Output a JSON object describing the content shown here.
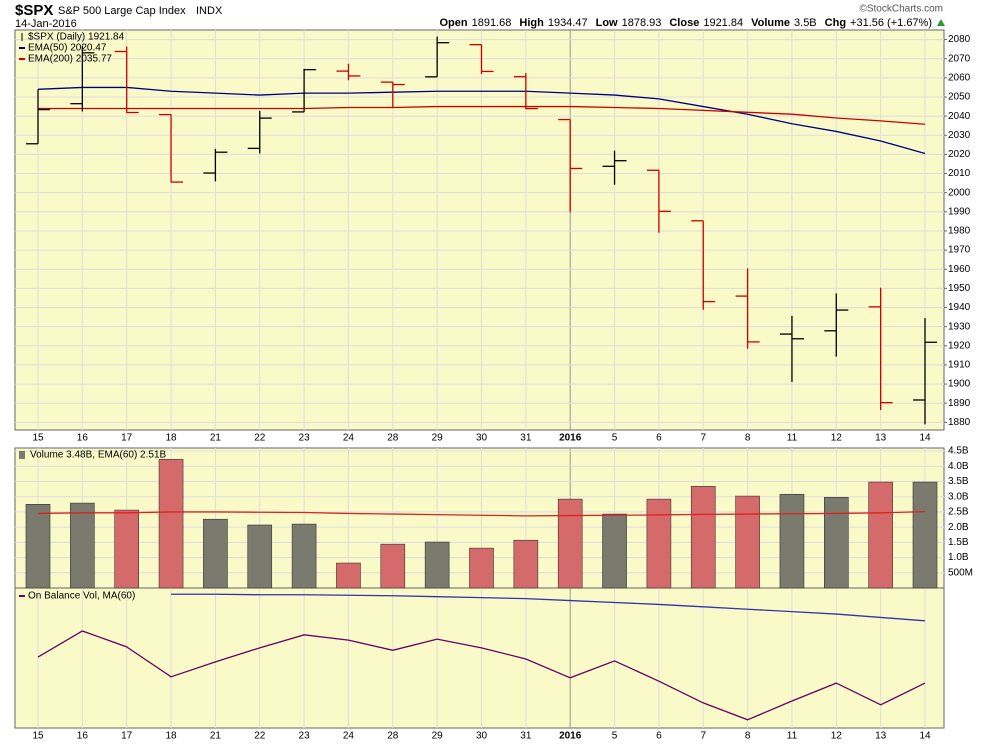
{
  "header": {
    "symbol": "$SPX",
    "name": "S&P 500 Large Cap Index",
    "exchange": "INDX",
    "date": "14-Jan-2016",
    "copyright": "©StockCharts.com",
    "quote": [
      {
        "label": "Open",
        "value": "1891.68"
      },
      {
        "label": "High",
        "value": "1934.47"
      },
      {
        "label": "Low",
        "value": "1878.93"
      },
      {
        "label": "Close",
        "value": "1921.84"
      },
      {
        "label": "Volume",
        "value": "3.5B"
      },
      {
        "label": "Chg",
        "value": "+31.56 (+1.67%)"
      }
    ]
  },
  "chart_data": [
    {
      "type": "ohlc",
      "name": "$SPX (Daily) 1921.84",
      "categories": [
        "15",
        "16",
        "17",
        "18",
        "21",
        "22",
        "23",
        "24",
        "28",
        "29",
        "30",
        "31",
        "2016",
        "5",
        "6",
        "7",
        "8",
        "11",
        "12",
        "13",
        "14"
      ],
      "open": [
        2025.55,
        2046.5,
        2073.76,
        2040.81,
        2010.27,
        2023.15,
        2042.2,
        2063.52,
        2057.77,
        2060.54,
        2077.34,
        2060.59,
        2038.2,
        2013.78,
        2011.71,
        1985.32,
        1945.97,
        1926.12,
        1927.83,
        1940.34,
        1891.68
      ],
      "high": [
        2053.87,
        2076.72,
        2076.37,
        2040.81,
        2022.9,
        2042.74,
        2064.73,
        2067.36,
        2057.77,
        2081.56,
        2077.34,
        2062.54,
        2038.2,
        2021.94,
        2011.71,
        1985.32,
        1960.4,
        1935.65,
        1947.38,
        1950.33,
        1934.47
      ],
      "low": [
        2025.55,
        2042.43,
        2041.66,
        2005.33,
        2005.93,
        2020.49,
        2042.2,
        2058.73,
        2044.2,
        2060.54,
        2061.97,
        2043.62,
        1989.68,
        2004.17,
        1979.05,
        1938.83,
        1918.46,
        1901.1,
        1914.35,
        1886.41,
        1878.93
      ],
      "close": [
        2043.41,
        2073.07,
        2041.89,
        2005.55,
        2021.15,
        2038.97,
        2064.29,
        2060.99,
        2056.5,
        2078.36,
        2063.36,
        2043.94,
        2012.66,
        2016.71,
        1990.26,
        1943.09,
        1922.03,
        1923.67,
        1938.68,
        1890.28,
        1921.84
      ],
      "colors": [
        "#000000",
        "#000000",
        "#cc0000",
        "#cc0000",
        "#000000",
        "#000000",
        "#000000",
        "#cc0000",
        "#cc0000",
        "#000000",
        "#cc0000",
        "#cc0000",
        "#cc0000",
        "#000000",
        "#cc0000",
        "#cc0000",
        "#cc0000",
        "#000000",
        "#000000",
        "#cc0000",
        "#000000"
      ],
      "series": [
        {
          "name": "EMA(50) 2020.47",
          "color": "#000080",
          "values": [
            2054,
            2055,
            2055,
            2053,
            2052,
            2051,
            2052,
            2052,
            2052.5,
            2053,
            2053,
            2053,
            2052,
            2051,
            2049,
            2045,
            2041,
            2036,
            2032,
            2027,
            2020.47
          ]
        },
        {
          "name": "EMA(200) 2035.77",
          "color": "#cc0000",
          "values": [
            2044,
            2044,
            2044,
            2044,
            2044,
            2044,
            2044,
            2044.5,
            2044.5,
            2045,
            2045,
            2045,
            2045,
            2044.5,
            2044,
            2043,
            2042,
            2041,
            2039,
            2037.5,
            2035.77
          ]
        }
      ],
      "ylim": [
        1876,
        2085
      ],
      "yticks": [
        1880,
        1890,
        1900,
        1910,
        1920,
        1930,
        1940,
        1950,
        1960,
        1970,
        1980,
        1990,
        2000,
        2010,
        2020,
        2030,
        2040,
        2050,
        2060,
        2070,
        2080
      ],
      "grid": true
    },
    {
      "type": "bar",
      "name": "Volume 3.48B, EMA(60) 2.51B",
      "values": [
        2.75,
        2.79,
        2.56,
        4.23,
        2.26,
        2.07,
        2.1,
        0.82,
        1.44,
        1.51,
        1.31,
        1.57,
        2.92,
        2.43,
        2.92,
        3.34,
        3.02,
        3.08,
        2.98,
        3.48,
        3.48
      ],
      "colors": [
        "#7a7a6e",
        "#7a7a6e",
        "#d46a6a",
        "#d46a6a",
        "#7a7a6e",
        "#7a7a6e",
        "#7a7a6e",
        "#d46a6a",
        "#d46a6a",
        "#7a7a6e",
        "#d46a6a",
        "#d46a6a",
        "#d46a6a",
        "#7a7a6e",
        "#d46a6a",
        "#d46a6a",
        "#d46a6a",
        "#7a7a6e",
        "#7a7a6e",
        "#d46a6a",
        "#7a7a6e"
      ],
      "series": [
        {
          "color": "#dd2222",
          "values": [
            2.45,
            2.47,
            2.47,
            2.5,
            2.5,
            2.49,
            2.48,
            2.45,
            2.43,
            2.41,
            2.39,
            2.37,
            2.38,
            2.39,
            2.4,
            2.42,
            2.43,
            2.44,
            2.45,
            2.47,
            2.51
          ]
        }
      ],
      "ylim": [
        0,
        4.6
      ],
      "yticks": [
        {
          "value": 0.5,
          "label": "500M"
        },
        {
          "value": 1,
          "label": "1.0B"
        },
        {
          "value": 1.5,
          "label": "1.5B"
        },
        {
          "value": 2,
          "label": "2.0B"
        },
        {
          "value": 2.5,
          "label": "2.5B"
        },
        {
          "value": 3,
          "label": "3.0B"
        },
        {
          "value": 3.5,
          "label": "3.5B"
        },
        {
          "value": 4,
          "label": "4.0B"
        },
        {
          "value": 4.5,
          "label": "4.5B"
        }
      ],
      "grid": true
    },
    {
      "type": "line",
      "name": "On Balance Vol, MA(60)",
      "series": [
        {
          "color": "#660066",
          "values": [
            14.7,
            20.1,
            16.8,
            10.6,
            13.7,
            16.6,
            19.3,
            18.2,
            16.1,
            18.4,
            16.6,
            14.3,
            10.4,
            13.9,
            9.7,
            5.2,
            1.7,
            5.6,
            9.3,
            4.8,
            9.3
          ]
        },
        {
          "color": "#3333aa",
          "values": [
            null,
            null,
            null,
            27.7,
            27.7,
            27.6,
            27.6,
            27.5,
            27.4,
            27.2,
            27.0,
            26.8,
            26.4,
            26.0,
            25.6,
            25.1,
            24.6,
            24.1,
            23.6,
            22.9,
            22.2
          ]
        }
      ],
      "ylim": [
        0,
        29
      ]
    }
  ]
}
